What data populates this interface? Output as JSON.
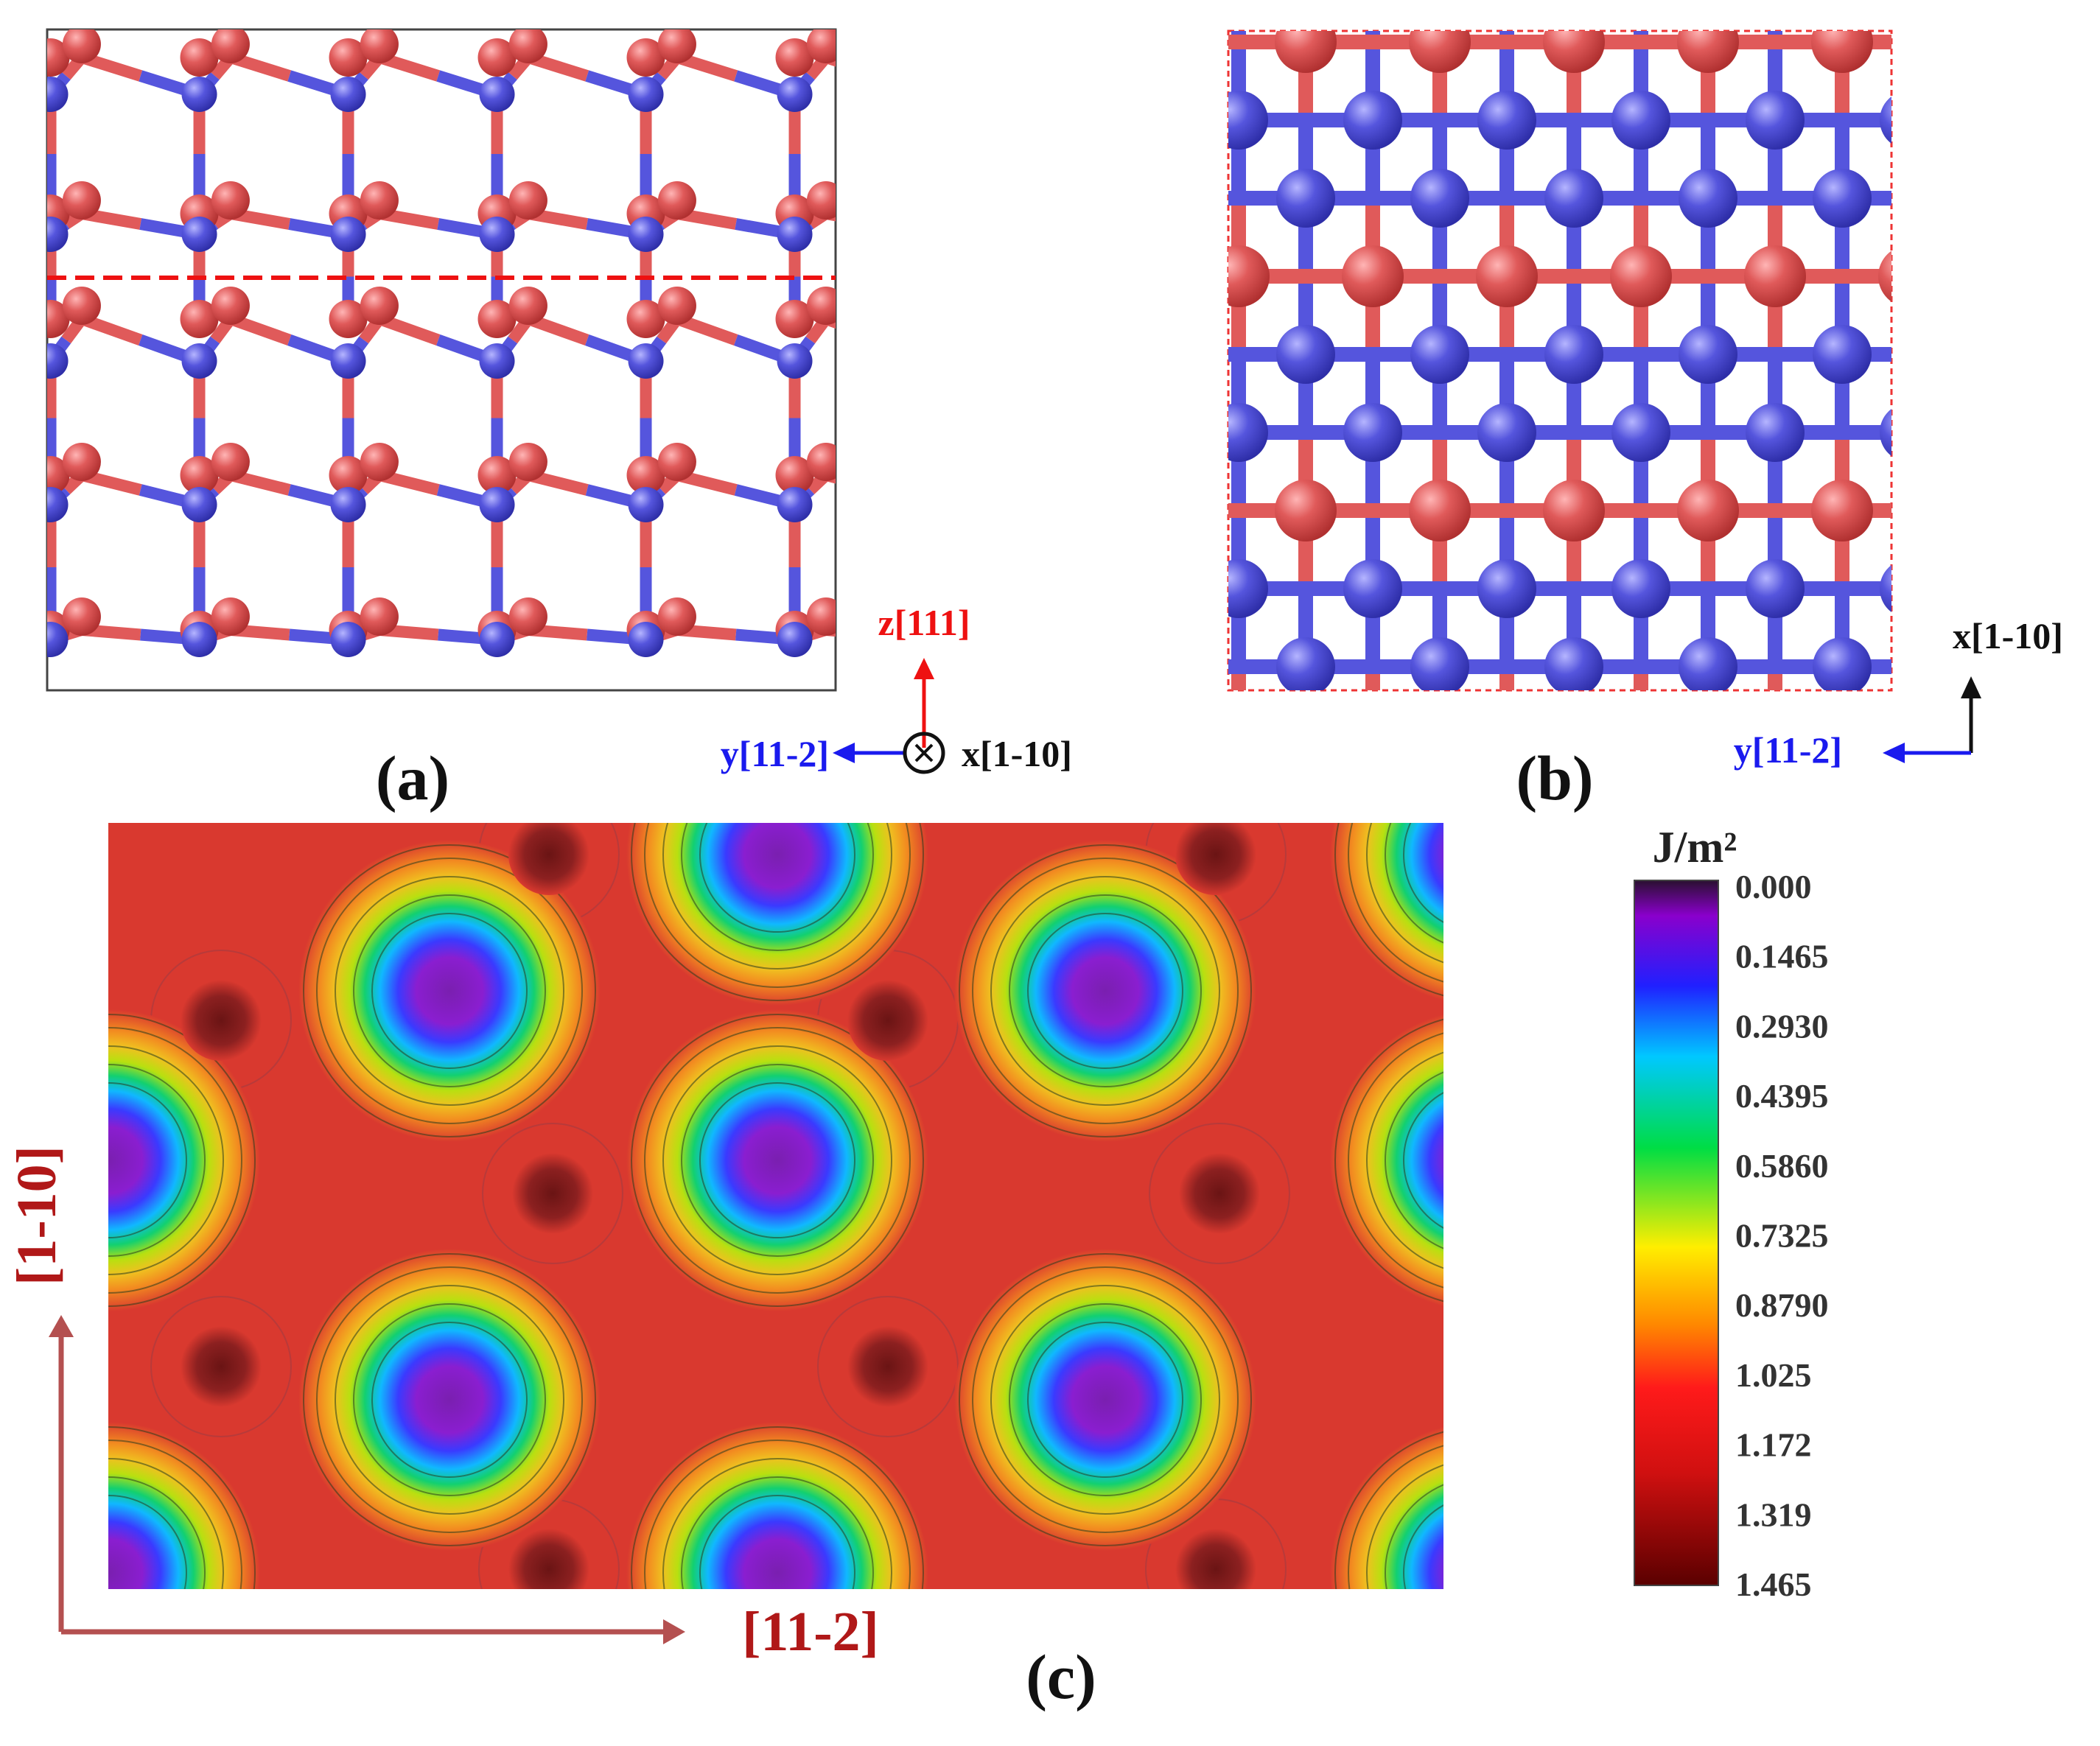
{
  "panels": {
    "a": {
      "label": "(a)",
      "dashed_line_color": "#ee1111"
    },
    "b": {
      "label": "(b)"
    },
    "c": {
      "label": "(c)"
    }
  },
  "axes_a": {
    "z": "z[111]",
    "y": "y[11-2]",
    "x": "x[1-10]"
  },
  "axes_b": {
    "x": "x[1-10]",
    "y": "y[11-2]"
  },
  "map_axes": {
    "vertical": "[1-10]",
    "horizontal": "[11-2]"
  },
  "colorbar": {
    "unit": "J/m²",
    "ticks": [
      "0.000",
      "0.1465",
      "0.2930",
      "0.4395",
      "0.5860",
      "0.7325",
      "0.8790",
      "1.025",
      "1.172",
      "1.319",
      "1.465"
    ],
    "colors": [
      "#2a1030",
      "#8a00cc",
      "#2020ff",
      "#00c8ff",
      "#00dd44",
      "#ffee00",
      "#ff8800",
      "#ff1a1a",
      "#d01010",
      "#a00808",
      "#5a0000"
    ]
  },
  "atom_colors": {
    "red": "#e05a5a",
    "blue": "#5555dd"
  },
  "colors": {
    "map_background": "#d9392f",
    "map_deep_well": "#6a1414"
  }
}
